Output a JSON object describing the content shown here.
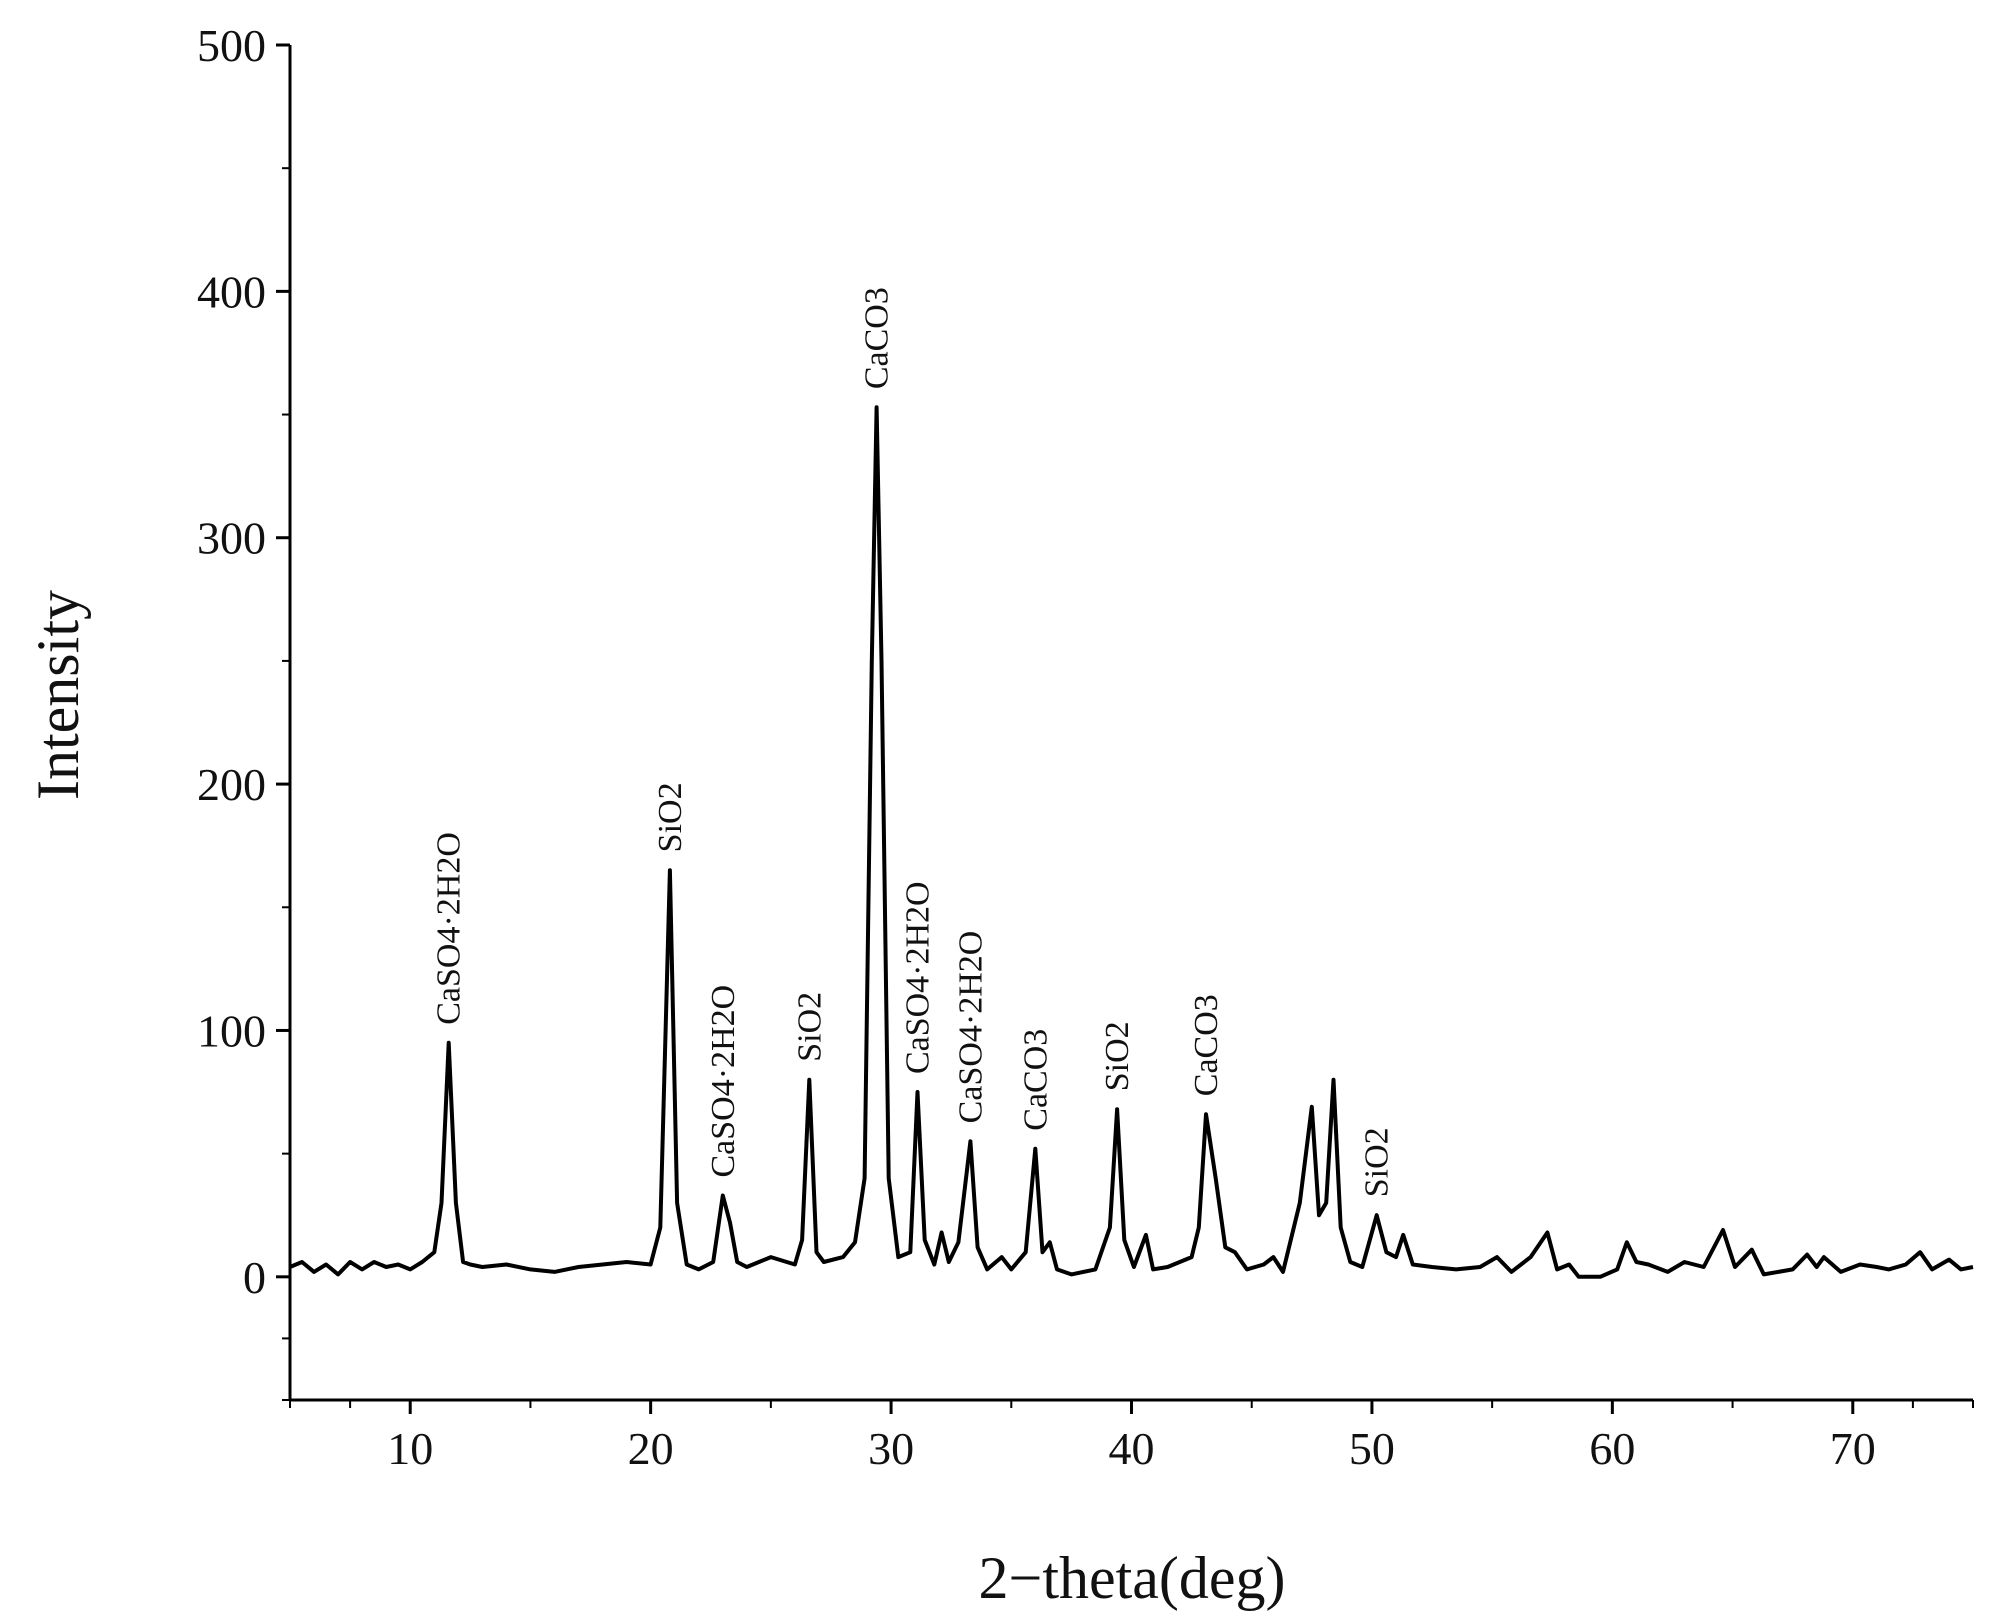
{
  "chart_data": {
    "type": "line",
    "xlabel": "2−theta(deg)",
    "ylabel": "Intensity",
    "xlim": [
      5,
      75
    ],
    "xticks": [
      10,
      20,
      30,
      40,
      50,
      60,
      70
    ],
    "ylim": [
      -50,
      500
    ],
    "yticks": [
      0,
      100,
      200,
      300,
      400,
      500
    ],
    "series": [
      {
        "color": "#000000",
        "x": [
          5,
          5.5,
          6,
          6.5,
          7,
          7.5,
          8,
          8.5,
          9,
          9.5,
          10,
          10.5,
          11,
          11.3,
          11.6,
          11.9,
          12.2,
          12.5,
          13,
          14,
          15,
          16,
          17,
          18,
          19,
          20,
          20.4,
          20.8,
          21.1,
          21.5,
          22,
          22.6,
          23.0,
          23.3,
          23.6,
          24,
          25,
          26,
          26.3,
          26.6,
          26.9,
          27.2,
          28,
          28.5,
          28.9,
          29.2,
          29.4,
          29.6,
          29.9,
          30.3,
          30.8,
          31.1,
          31.4,
          31.8,
          32.1,
          32.4,
          32.8,
          33.3,
          33.6,
          34,
          34.6,
          35,
          35.6,
          36.0,
          36.3,
          36.6,
          36.9,
          37.5,
          38.5,
          39.1,
          39.4,
          39.7,
          40.1,
          40.6,
          40.9,
          41.5,
          42.5,
          42.8,
          43.1,
          43.5,
          43.9,
          44.3,
          44.8,
          45.5,
          45.9,
          46.3,
          47.0,
          47.5,
          47.8,
          48.1,
          48.4,
          48.7,
          49.1,
          49.6,
          50.2,
          50.6,
          51.0,
          51.3,
          51.7,
          52.5,
          53.5,
          54.5,
          55.2,
          55.8,
          56.6,
          57.3,
          57.7,
          58.2,
          58.6,
          59.5,
          60.2,
          60.6,
          61,
          61.5,
          62.3,
          63,
          63.8,
          64.6,
          65.1,
          65.8,
          66.3,
          67.5,
          68.1,
          68.5,
          68.8,
          69.5,
          70.3,
          71,
          71.5,
          72.2,
          72.8,
          73.3,
          74,
          74.5,
          75
        ],
        "values": [
          4,
          6,
          2,
          5,
          1,
          6,
          3,
          6,
          4,
          5,
          3,
          6,
          10,
          30,
          95,
          30,
          6,
          5,
          4,
          5,
          3,
          2,
          4,
          5,
          6,
          5,
          20,
          165,
          30,
          5,
          3,
          6,
          33,
          22,
          6,
          4,
          8,
          5,
          15,
          80,
          10,
          6,
          8,
          14,
          40,
          250,
          353,
          250,
          40,
          8,
          10,
          75,
          15,
          5,
          18,
          6,
          14,
          55,
          12,
          3,
          8,
          3,
          10,
          52,
          10,
          14,
          3,
          1,
          3,
          20,
          68,
          15,
          4,
          17,
          3,
          4,
          8,
          20,
          66,
          40,
          12,
          10,
          3,
          5,
          8,
          2,
          30,
          69,
          25,
          30,
          80,
          20,
          6,
          4,
          25,
          10,
          8,
          17,
          5,
          4,
          3,
          4,
          8,
          2,
          8,
          18,
          3,
          5,
          0,
          0,
          3,
          14,
          6,
          5,
          2,
          6,
          4,
          19,
          4,
          11,
          1,
          3,
          9,
          4,
          8,
          2,
          5,
          4,
          3,
          5,
          10,
          3,
          7,
          3,
          4
        ]
      }
    ],
    "annotations": [
      {
        "text": "CaSO4·2H2O",
        "x": 11.6
      },
      {
        "text": "SiO2",
        "x": 20.8
      },
      {
        "text": "CaSO4·2H2O",
        "x": 23.0
      },
      {
        "text": "SiO2",
        "x": 26.6
      },
      {
        "text": "CaCO3",
        "x": 29.4
      },
      {
        "text": "CaSO4·2H2O",
        "x": 31.1
      },
      {
        "text": "CaSO4·2H2O",
        "x": 33.3
      },
      {
        "text": "CaCO3",
        "x": 36.0
      },
      {
        "text": "SiO2",
        "x": 39.4
      },
      {
        "text": "CaCO3",
        "x": 43.1
      },
      {
        "text": "SiO2",
        "x": 50.2
      }
    ]
  }
}
